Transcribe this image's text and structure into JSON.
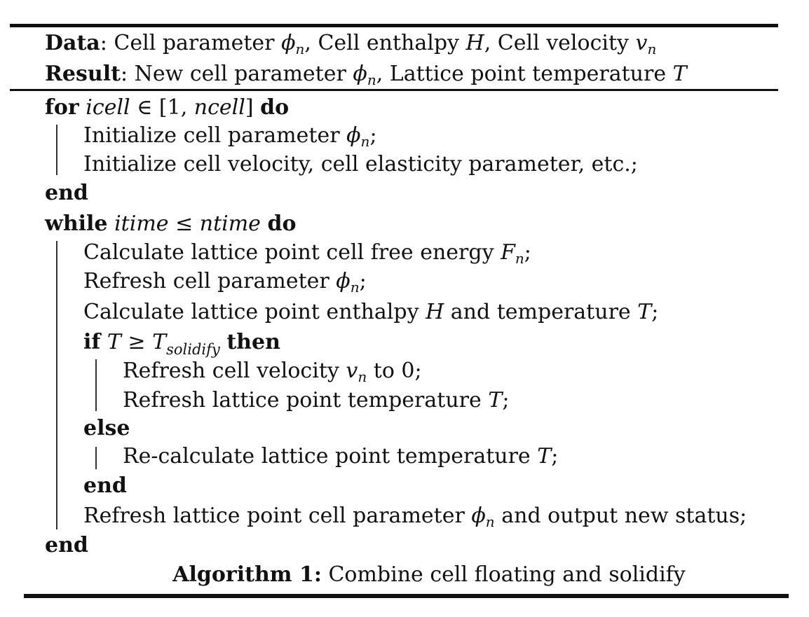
{
  "header": {
    "data_label": "Data",
    "data_sep": ":",
    "data_text_1": "Cell parameter",
    "data_phi": "ϕ",
    "data_phi_sub": "n",
    "data_text_2": ", Cell enthalpy",
    "data_H": "H",
    "data_text_3": ", Cell velocity",
    "data_v": "v",
    "data_v_sub": "n",
    "result_label": "Result",
    "result_sep": ":",
    "result_text_1": "New cell parameter",
    "result_phi": "ϕ",
    "result_phi_sub": "n",
    "result_text_2": ", Lattice point temperature",
    "result_T": "T"
  },
  "body": {
    "for_kw": "for",
    "for_var": "icell",
    "for_in": " ∈ [1, ",
    "for_ncell": "ncell",
    "for_close": "]",
    "for_do": "do",
    "init1_text": "Initialize cell parameter",
    "init1_phi": "ϕ",
    "init1_sub": "n",
    "init1_end": ";",
    "init2_text": "Initialize cell velocity, cell elasticity parameter, etc.;",
    "end1": "end",
    "while_kw": "while",
    "while_var": "itime",
    "while_le": " ≤ ",
    "while_ntime": "ntime",
    "while_do": "do",
    "calc1_text": "Calculate lattice point cell free energy",
    "calc1_F": "F",
    "calc1_sub": "n",
    "calc1_end": ";",
    "refresh1_text": "Refresh cell parameter",
    "refresh1_phi": "ϕ",
    "refresh1_sub": "n",
    "refresh1_end": ";",
    "calc2_text": "Calculate lattice point enthalpy",
    "calc2_H": "H",
    "calc2_and": "and temperature",
    "calc2_T": "T",
    "calc2_end": ";",
    "if_kw": "if",
    "if_T": "T",
    "if_ge": " ≥ ",
    "if_T2": "T",
    "if_sub": "solidify",
    "if_then": "then",
    "then1_text": "Refresh cell velocity",
    "then1_v": "v",
    "then1_sub": "n",
    "then1_end": "to 0;",
    "then2_text": "Refresh lattice point temperature",
    "then2_T": "T",
    "then2_end": ";",
    "else_kw": "else",
    "else1_text": "Re-calculate lattice point temperature",
    "else1_T": "T",
    "else1_end": ";",
    "end2": "end",
    "refresh2_text": "Refresh lattice point cell parameter",
    "refresh2_phi": "ϕ",
    "refresh2_sub": "n",
    "refresh2_end": "and output new status;",
    "end3": "end"
  },
  "caption": {
    "label": "Algorithm 1:",
    "text": "Combine cell floating and solidify"
  }
}
